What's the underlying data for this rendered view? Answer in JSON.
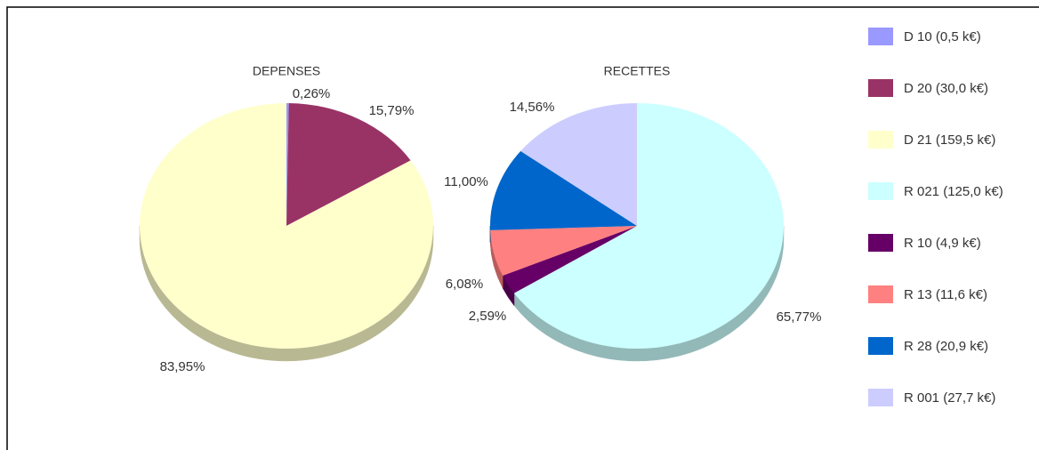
{
  "chart_data": [
    {
      "type": "pie",
      "title": "DEPENSES",
      "slices": [
        {
          "label": "D 10 (0,5 k€)",
          "value": 0.26,
          "value_label": "0,26%",
          "color": "#9999ff"
        },
        {
          "label": "D 20 (30,0 k€)",
          "value": 15.79,
          "value_label": "15,79%",
          "color": "#993366"
        },
        {
          "label": "D 21 (159,5 k€)",
          "value": 83.95,
          "value_label": "83,95%",
          "color": "#ffffcc"
        }
      ]
    },
    {
      "type": "pie",
      "title": "RECETTES",
      "slices": [
        {
          "label": "R 021 (125,0 k€)",
          "value": 65.77,
          "value_label": "65,77%",
          "color": "#ccffff"
        },
        {
          "label": "R 10 (4,9 k€)",
          "value": 2.59,
          "value_label": "2,59%",
          "color": "#660066"
        },
        {
          "label": "R 13 (11,6 k€)",
          "value": 6.08,
          "value_label": "6,08%",
          "color": "#ff8080"
        },
        {
          "label": "R 28 (20,9 k€)",
          "value": 11.0,
          "value_label": "11,00%",
          "color": "#0066cc"
        },
        {
          "label": "R 001 (27,7 k€)",
          "value": 14.56,
          "value_label": "14,56%",
          "color": "#ccccff"
        }
      ]
    }
  ],
  "legend": [
    {
      "label": "D 10 (0,5 k€)",
      "color": "#9999ff"
    },
    {
      "label": "D 20 (30,0 k€)",
      "color": "#993366"
    },
    {
      "label": "D 21 (159,5 k€)",
      "color": "#ffffcc"
    },
    {
      "label": "R 021 (125,0 k€)",
      "color": "#ccffff"
    },
    {
      "label": "R 10 (4,9 k€)",
      "color": "#660066"
    },
    {
      "label": "R 13 (11,6 k€)",
      "color": "#ff8080"
    },
    {
      "label": "R 28 (20,9 k€)",
      "color": "#0066cc"
    },
    {
      "label": "R 001 (27,7 k€)",
      "color": "#ccccff"
    }
  ]
}
